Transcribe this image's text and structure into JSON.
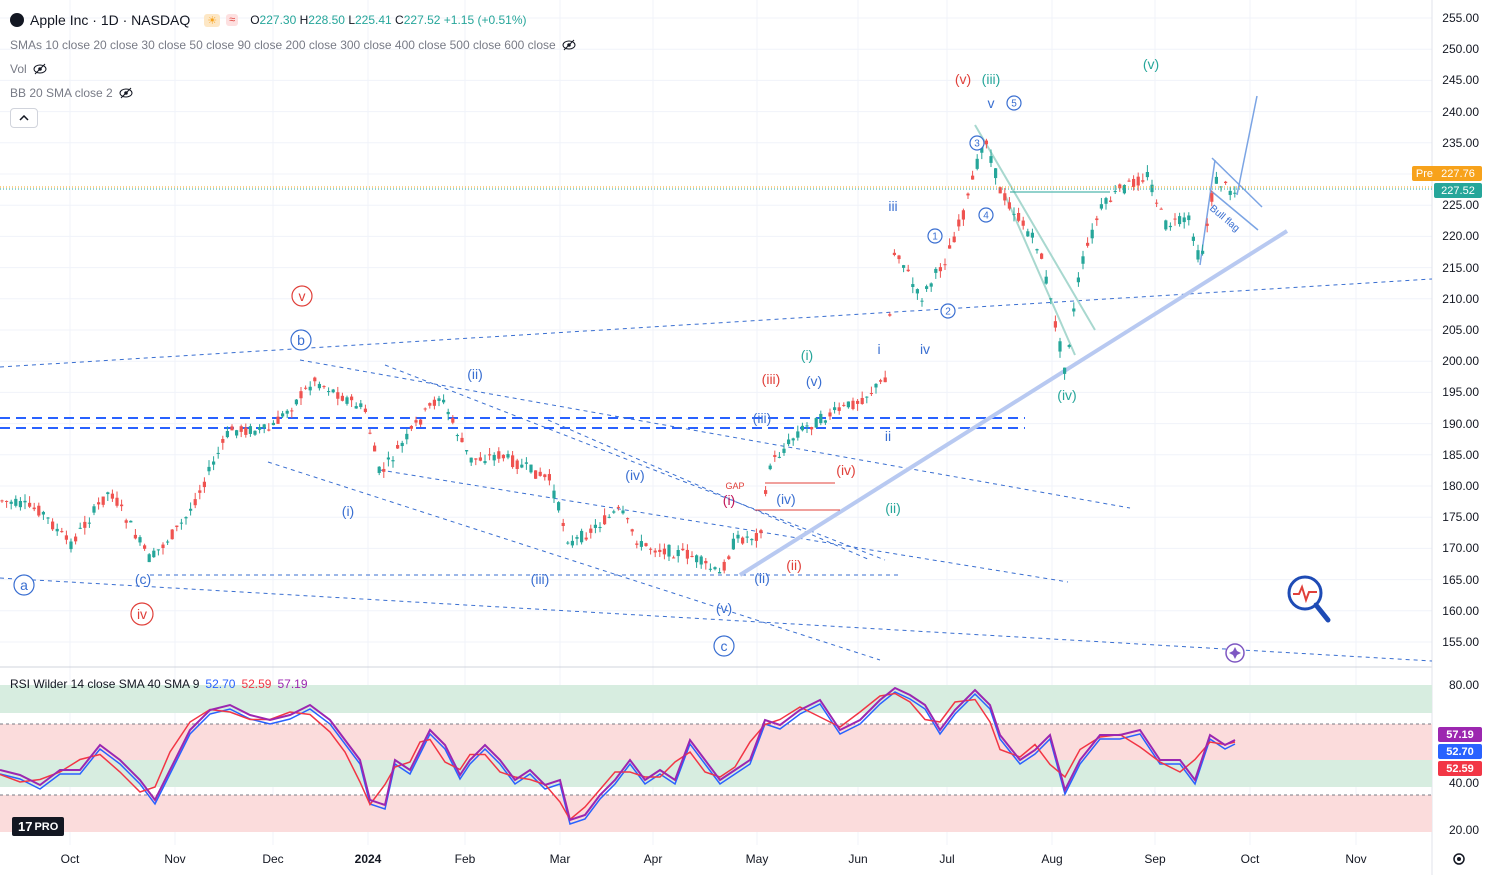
{
  "header": {
    "symbol_title": "Apple Inc · 1D · NASDAQ",
    "ohlc": {
      "o_label": "O",
      "o": "227.30",
      "h_label": "H",
      "h": "228.50",
      "l_label": "L",
      "l": "225.41",
      "c_label": "C",
      "c": "227.52",
      "change": "+1.15 (+0.51%)"
    },
    "indicators": [
      {
        "label": "SMAs 10 close 20 close 30 close 50 close 90 close 200 close 300 close 400 close 500 close 600 close"
      },
      {
        "label": "Vol"
      },
      {
        "label": "BB 20 SMA close 2"
      }
    ]
  },
  "rsi_legend": {
    "label": "RSI Wilder 14 close SMA 40 SMA 9",
    "v1": "52.70",
    "v2": "52.59",
    "v3": "57.19"
  },
  "price_axis": [
    "255.00",
    "250.00",
    "245.00",
    "240.00",
    "235.00",
    "230.00",
    "225.00",
    "220.00",
    "215.00",
    "210.00",
    "205.00",
    "200.00",
    "195.00",
    "190.00",
    "185.00",
    "180.00",
    "175.00",
    "170.00",
    "165.00",
    "160.00",
    "155.00"
  ],
  "price_tags": {
    "pre_label": "Pre",
    "pre_value": "227.76",
    "last_value": "227.52"
  },
  "rsi_axis": [
    "80.00",
    "40.00",
    "20.00"
  ],
  "rsi_tags": [
    "57.19",
    "52.70",
    "52.59"
  ],
  "time_axis": [
    "Oct",
    "Nov",
    "Dec",
    "2024",
    "Feb",
    "Mar",
    "Apr",
    "May",
    "Jun",
    "Jul",
    "Aug",
    "Sep",
    "Oct",
    "Nov"
  ],
  "wave_labels": [
    {
      "t": "a",
      "color": "#3a6fd1",
      "circle": true
    },
    {
      "t": "(c)",
      "color": "#3a6fd1",
      "circle": false
    },
    {
      "t": "iv",
      "color": "#e0403a",
      "circle": true
    },
    {
      "t": "v",
      "color": "#e0403a",
      "circle": true
    },
    {
      "t": "b",
      "color": "#3a6fd1",
      "circle": true
    },
    {
      "t": "(i)",
      "color": "#3a6fd1",
      "circle": false
    },
    {
      "t": "(ii)",
      "color": "#3a6fd1",
      "circle": false
    },
    {
      "t": "(iii)",
      "color": "#3a6fd1",
      "circle": false
    },
    {
      "t": "(iv)",
      "color": "#3a6fd1",
      "circle": false
    },
    {
      "t": "(v)",
      "color": "#3a6fd1",
      "circle": false
    },
    {
      "t": "c",
      "color": "#3a6fd1",
      "circle": true
    },
    {
      "t": "(i)",
      "color": "#c2185b",
      "circle": false
    },
    {
      "t": "GAP",
      "color": "#e0403a",
      "circle": false
    },
    {
      "t": "(iv)",
      "color": "#3a6fd1",
      "circle": false
    },
    {
      "t": "(ii)",
      "color": "#3a6fd1",
      "circle": false
    },
    {
      "t": "(ii)",
      "color": "#e0403a",
      "circle": false
    },
    {
      "t": "(iii)",
      "color": "#3a6fd1",
      "circle": false
    },
    {
      "t": "(iii)",
      "color": "#e0403a",
      "circle": false
    },
    {
      "t": "(iv)",
      "color": "#e0403a",
      "circle": false
    },
    {
      "t": "(i)",
      "color": "#26a69a",
      "circle": false
    },
    {
      "t": "(v)",
      "color": "#3a6fd1",
      "circle": false
    },
    {
      "t": "(ii)",
      "color": "#26a69a",
      "circle": false
    },
    {
      "t": "i",
      "color": "#3a6fd1",
      "circle": false
    },
    {
      "t": "ii",
      "color": "#3a6fd1",
      "circle": false
    },
    {
      "t": "iii",
      "color": "#3a6fd1",
      "circle": false
    },
    {
      "t": "iv",
      "color": "#3a6fd1",
      "circle": false
    },
    {
      "t": "1",
      "color": "#3a6fd1",
      "circle": true
    },
    {
      "t": "2",
      "color": "#3a6fd1",
      "circle": true
    },
    {
      "t": "3",
      "color": "#3a6fd1",
      "circle": true
    },
    {
      "t": "4",
      "color": "#3a6fd1",
      "circle": true
    },
    {
      "t": "v",
      "color": "#3a6fd1",
      "circle": false
    },
    {
      "t": "5",
      "color": "#3a6fd1",
      "circle": true
    },
    {
      "t": "(v)",
      "color": "#e0403a",
      "circle": false
    },
    {
      "t": "(iii)",
      "color": "#26a69a",
      "circle": false
    },
    {
      "t": "(iv)",
      "color": "#26a69a",
      "circle": false
    },
    {
      "t": "(v)",
      "color": "#26a69a",
      "circle": false
    },
    {
      "t": "Bull flag",
      "color": "#3a6fd1",
      "circle": false
    }
  ],
  "colors": {
    "up": "#26a69a",
    "down": "#ef5350",
    "trend": "#3a6fd1",
    "rsi": "#9c27b0",
    "rsi_sma_fast": "#f23645",
    "rsi_sma_slow": "#2962ff",
    "bg_grid": "#f0f3fa"
  },
  "branding": {
    "logo_text": "PRO"
  },
  "icons": [
    "eye-off-icon",
    "chevron-up-icon",
    "magnifier-pulse-icon",
    "settings-icon",
    "flag-marker-icon"
  ]
}
